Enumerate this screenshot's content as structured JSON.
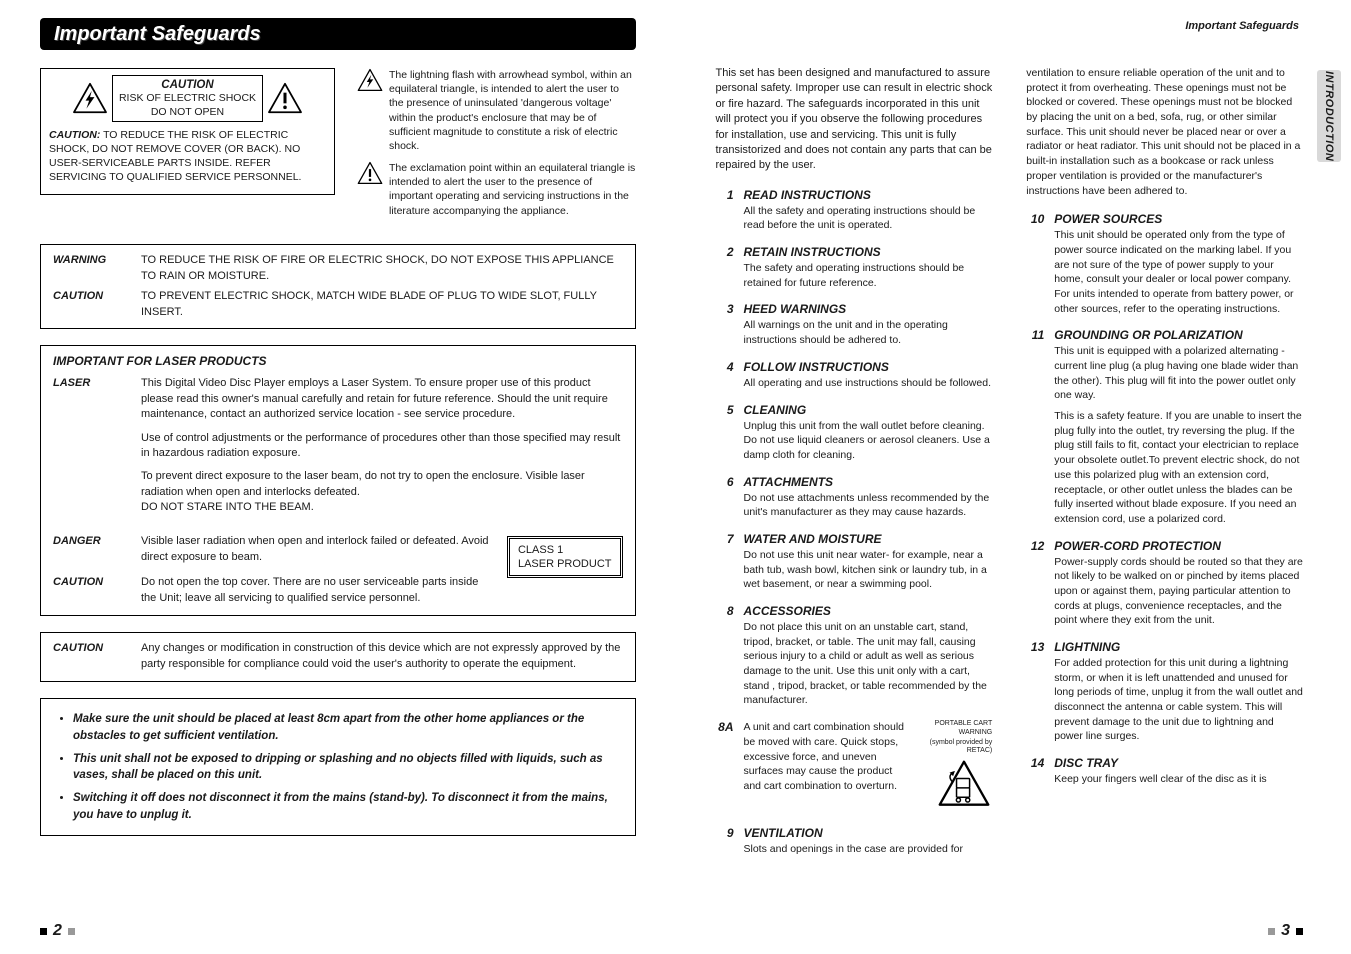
{
  "colors": {
    "ink": "#1a1a1a",
    "banner_bg": "#000000",
    "banner_fg": "#ffffff",
    "tab_bg": "#d9d9d9",
    "square_light": "#999999"
  },
  "fonts": {
    "body_pt": 12,
    "small_pt": 11,
    "tiny_pt": 10.5
  },
  "left": {
    "banner": "Important Safeguards",
    "plate": {
      "caption_title": "CAUTION",
      "caption_line1": "RISK OF ELECTRIC SHOCK",
      "caption_line2": "DO NOT OPEN",
      "body_label": "CAUTION:",
      "body_text": "TO REDUCE THE RISK OF ELECTRIC SHOCK, DO NOT REMOVE COVER (OR BACK). NO USER-SERVICEABLE PARTS INSIDE. REFER SERVICING TO QUALIFIED SERVICE PERSONNEL."
    },
    "symbol_desc": {
      "bolt": "The lightning flash with arrowhead symbol, within an equilateral triangle, is intended to alert the user to the presence of uninsulated 'dangerous voltage' within the product's enclosure that may be of sufficient magnitude to constitute a risk of electric shock.",
      "excl": "The exclamation point within an equilateral triangle is intended to alert the user to the presence of important operating and servicing instructions in the literature accompanying the appliance."
    },
    "warn_box": [
      {
        "k": "WARNING",
        "v": "TO REDUCE THE RISK OF FIRE OR ELECTRIC SHOCK, DO NOT EXPOSE THIS APPLIANCE TO RAIN OR MOISTURE."
      },
      {
        "k": "CAUTION",
        "v": "TO PREVENT ELECTRIC SHOCK, MATCH WIDE BLADE OF PLUG TO WIDE SLOT, FULLY INSERT."
      }
    ],
    "laser_box": {
      "title": "IMPORTANT FOR LASER PRODUCTS",
      "rows": [
        {
          "k": "LASER",
          "paras": [
            "This Digital Video Disc Player employs a Laser System. To ensure proper use of this product please read this owner's manual carefully and retain for future reference. Should the unit require maintenance, contact an authorized service location - see service procedure.",
            "Use of control adjustments or the performance of procedures other than those specified may result in hazardous radiation exposure.",
            "To prevent direct exposure to the laser beam, do not try to open the enclosure. Visible laser radiation when open and interlocks defeated.\nDO NOT STARE INTO THE BEAM."
          ]
        },
        {
          "k": "DANGER",
          "paras": [
            "Visible laser radiation when open and interlock failed or defeated. Avoid direct  exposure to beam."
          ]
        },
        {
          "k": "CAUTION",
          "paras": [
            "Do not open the top cover. There are no user serviceable parts inside the Unit; leave all servicing to qualified service personnel."
          ]
        }
      ],
      "class1_line1": "CLASS 1",
      "class1_line2": "LASER PRODUCT"
    },
    "mod_box": {
      "k": "CAUTION",
      "v": "Any changes or modification in construction of this device which are not expressly approved by the party responsible for compliance could void the user's authority to operate the equipment."
    },
    "bullets": [
      "Make sure the unit should be placed at least 8cm apart from the other home appliances or the obstacles to get sufficient ventilation.",
      "This unit shall not be exposed to dripping or splashing and no objects filled with liquids, such as vases, shall be placed on this unit.",
      "Switching it off does not disconnect it from the mains (stand-by). To disconnect it from the mains, you have to unplug it."
    ],
    "page_num": "2"
  },
  "right": {
    "header_label": "Important Safeguards",
    "side_tab": "INTRODUCTION",
    "intro": "This set has been designed and manufactured to assure personal safety. Improper use can result in electric shock or fire hazard. The safeguards incorporated in this unit will protect you if you observe the following procedures for installation, use and servicing. This unit is fully transistorized and does not contain any parts that can be repaired by the user.",
    "vent_contd": "ventilation to ensure reliable operation of the unit and to protect it from overheating. These openings must not be blocked or covered. These openings must not be blocked by placing the unit on a bed, sofa, rug, or other similar surface. This unit should never be placed near or over a radiator or heat radiator. This unit should not be placed in a built-in installation such as a bookcase or rack unless proper ventilation is provided or the manufacturer's instructions have been adhered to.",
    "items_col1": [
      {
        "n": "1",
        "t": "READ INSTRUCTIONS",
        "b": "All the safety and operating instructions should be read before the unit is operated."
      },
      {
        "n": "2",
        "t": "RETAIN INSTRUCTIONS",
        "b": "The safety and operating instructions should be retained for future reference."
      },
      {
        "n": "3",
        "t": "HEED WARNINGS",
        "b": "All warnings on the unit and in the operating instructions should be adhered to."
      },
      {
        "n": "4",
        "t": "FOLLOW INSTRUCTIONS",
        "b": "All operating and use instructions should be followed."
      },
      {
        "n": "5",
        "t": "CLEANING",
        "b": "Unplug this unit from the wall outlet before cleaning. Do not use liquid cleaners or aerosol cleaners. Use a damp cloth for cleaning."
      },
      {
        "n": "6",
        "t": "ATTACHMENTS",
        "b": "Do not use attachments unless recommended by the unit's manufacturer as they may cause hazards."
      },
      {
        "n": "7",
        "t": "WATER AND MOISTURE",
        "b": "Do not use this unit near water- for example, near a bath tub, wash bowl, kitchen sink or laundry tub, in a wet basement, or near a swimming pool."
      },
      {
        "n": "8",
        "t": "ACCESSORIES",
        "b": "Do not place this unit on an unstable cart, stand, tripod, bracket, or table. The unit may fall, causing serious injury to a child or adult as well as serious damage to the unit. Use this unit only with a cart, stand , tripod, bracket, or table recommended by the manufacturer."
      }
    ],
    "item_8a": {
      "n": "8A",
      "b": "A unit and cart combination should be moved with care. Quick stops, excessive force, and uneven surfaces may cause the product and cart combination to overturn.",
      "cap1": "PORTABLE CART WARNING",
      "cap2": "(symbol provided by RETAC)"
    },
    "item_9": {
      "n": "9",
      "t": "VENTILATION",
      "b": "Slots and openings in the case are provided for"
    },
    "items_col2": [
      {
        "n": "10",
        "t": "POWER SOURCES",
        "b": "This unit should be operated only from the type of power source indicated on the marking label. If you are not sure of the type of power supply to your home, consult your dealer or local power company. For units intended to operate from battery power, or other sources, refer to the operating instructions."
      },
      {
        "n": "11",
        "t": "GROUNDING OR POLARIZATION",
        "b": "This unit is equipped with a polarized alternating -current line plug (a plug having one blade wider than the other). This plug will fit into the power outlet only one way.",
        "b2": "This is a safety feature. If you are unable to insert the plug fully into the outlet, try reversing the plug. If the plug still fails to fit, contact your electrician to replace your obsolete outlet.To prevent electric shock, do not use this polarized plug with an extension cord, receptacle, or other outlet unless the blades can be fully inserted without blade exposure. If you need an extension cord, use a polarized cord."
      },
      {
        "n": "12",
        "t": "POWER-CORD PROTECTION",
        "b": "Power-supply cords should be routed so that they are not likely to be walked on or pinched by items placed upon or against them, paying particular attention to cords at plugs, convenience receptacles, and the point where they exit from the unit."
      },
      {
        "n": "13",
        "t": "LIGHTNING",
        "b": "For added protection for this unit during a lightning storm, or when it is left unattended and unused for long periods of time, unplug it from the wall outlet and disconnect the antenna or cable system. This will prevent damage to the unit due to lightning and power line surges."
      },
      {
        "n": "14",
        "t": "DISC TRAY",
        "b": "Keep your fingers well clear of the disc as it is"
      }
    ],
    "page_num": "3"
  }
}
